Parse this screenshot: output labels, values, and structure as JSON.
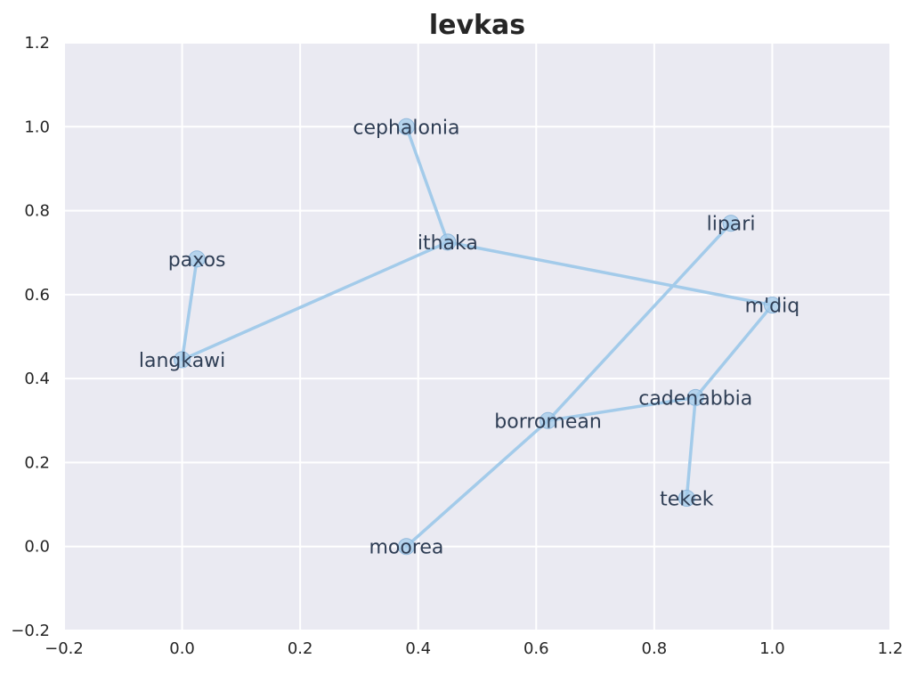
{
  "chart_data": {
    "type": "line",
    "title": "levkas",
    "xlabel": "",
    "ylabel": "",
    "xlim": [
      -0.2,
      1.2
    ],
    "ylim": [
      -0.2,
      1.2
    ],
    "xticks": [
      "−0.2",
      "0.0",
      "0.2",
      "0.4",
      "0.6",
      "0.8",
      "1.0",
      "1.2"
    ],
    "xtick_values": [
      -0.2,
      0.0,
      0.2,
      0.4,
      0.6,
      0.8,
      1.0,
      1.2
    ],
    "yticks": [
      "−0.2",
      "0.0",
      "0.2",
      "0.4",
      "0.6",
      "0.8",
      "1.0",
      "1.2"
    ],
    "ytick_values": [
      -0.2,
      0.0,
      0.2,
      0.4,
      0.6,
      0.8,
      1.0,
      1.2
    ],
    "grid": true,
    "points": [
      {
        "label": "cephalonia",
        "x": 0.38,
        "y": 1.0
      },
      {
        "label": "paxos",
        "x": 0.025,
        "y": 0.685
      },
      {
        "label": "lipari",
        "x": 0.93,
        "y": 0.77
      },
      {
        "label": "ithaka",
        "x": 0.45,
        "y": 0.725
      },
      {
        "label": "m'diq",
        "x": 1.0,
        "y": 0.575
      },
      {
        "label": "langkawi",
        "x": 0.0,
        "y": 0.445
      },
      {
        "label": "cadenabbia",
        "x": 0.87,
        "y": 0.355
      },
      {
        "label": "borromean",
        "x": 0.62,
        "y": 0.3
      },
      {
        "label": "tekek",
        "x": 0.855,
        "y": 0.115
      },
      {
        "label": "moorea",
        "x": 0.38,
        "y": 0.0
      }
    ],
    "edges": [
      [
        "cephalonia",
        "ithaka"
      ],
      [
        "ithaka",
        "langkawi"
      ],
      [
        "ithaka",
        "m'diq"
      ],
      [
        "langkawi",
        "paxos"
      ],
      [
        "m'diq",
        "cadenabbia"
      ],
      [
        "cadenabbia",
        "tekek"
      ],
      [
        "cadenabbia",
        "borromean"
      ],
      [
        "borromean",
        "lipari"
      ],
      [
        "borromean",
        "moorea"
      ]
    ],
    "colors": {
      "background": "#eaeaf2",
      "grid": "#ffffff",
      "edge": "#a3cbea",
      "marker": "#a3cbea",
      "label": "#2f3e55"
    }
  }
}
